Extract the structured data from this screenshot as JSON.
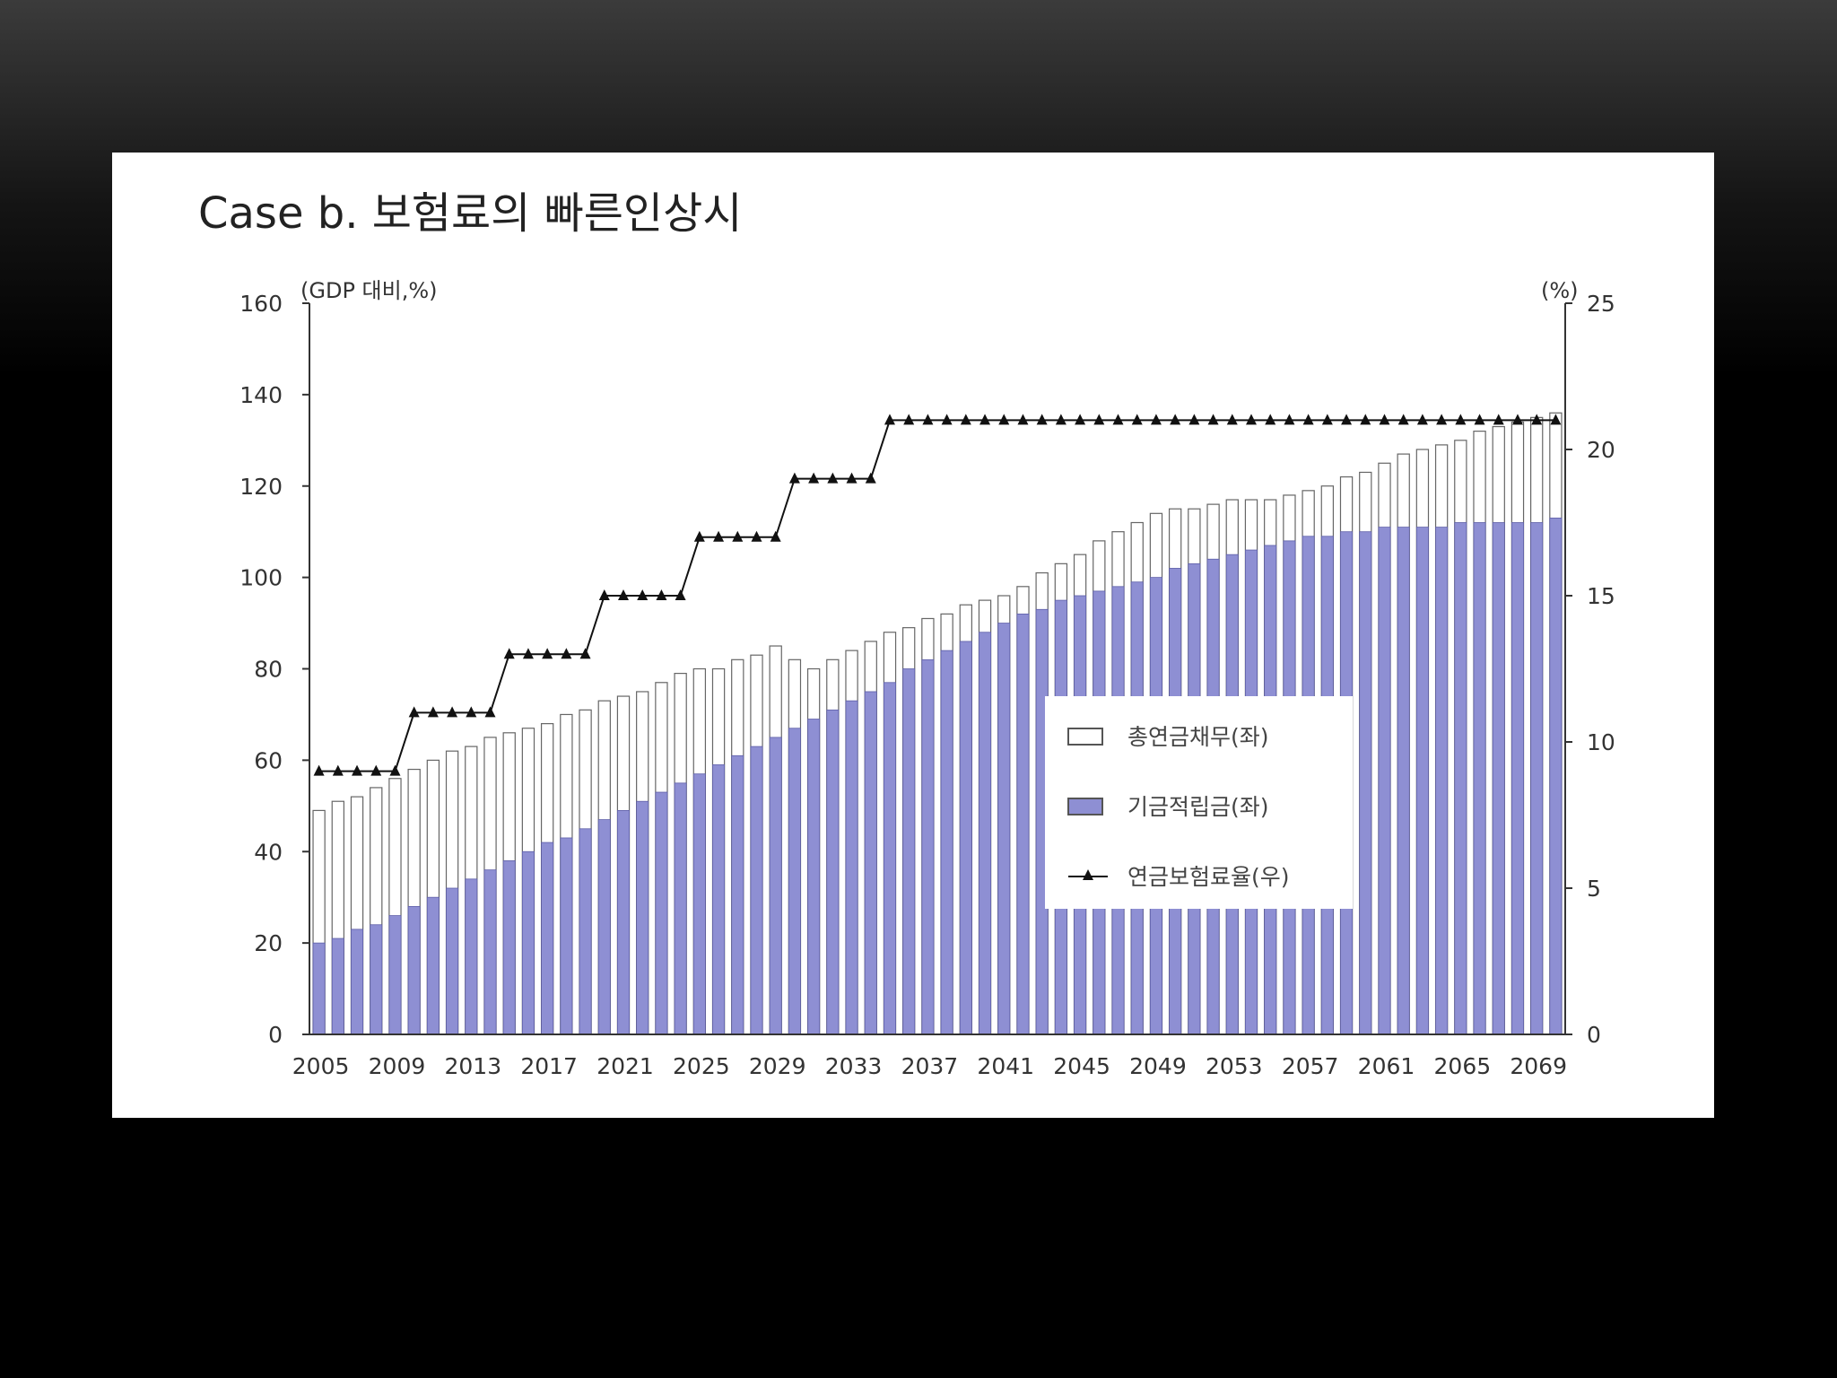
{
  "chart_data": {
    "type": "bar",
    "title": "Case b. 보험료의 빠른인상시",
    "left_axis_unit": "(GDP 대비,%)",
    "right_axis_unit": "(%)",
    "x": [
      2005,
      2006,
      2007,
      2008,
      2009,
      2010,
      2011,
      2012,
      2013,
      2014,
      2015,
      2016,
      2017,
      2018,
      2019,
      2020,
      2021,
      2022,
      2023,
      2024,
      2025,
      2026,
      2027,
      2028,
      2029,
      2030,
      2031,
      2032,
      2033,
      2034,
      2035,
      2036,
      2037,
      2038,
      2039,
      2040,
      2041,
      2042,
      2043,
      2044,
      2045,
      2046,
      2047,
      2048,
      2049,
      2050,
      2051,
      2052,
      2053,
      2054,
      2055,
      2056,
      2057,
      2058,
      2059,
      2060,
      2061,
      2062,
      2063,
      2064,
      2065,
      2066,
      2067,
      2068,
      2069,
      2070
    ],
    "x_tick_labels": [
      "2005",
      "2009",
      "2013",
      "2017",
      "2021",
      "2025",
      "2029",
      "2033",
      "2037",
      "2041",
      "2045",
      "2049",
      "2053",
      "2057",
      "2061",
      "2065",
      "2069"
    ],
    "ylim_left": [
      0,
      160
    ],
    "yticks_left": [
      0,
      20,
      40,
      60,
      80,
      100,
      120,
      140,
      160
    ],
    "ylim_right": [
      0,
      25
    ],
    "yticks_right": [
      0,
      5,
      10,
      15,
      20,
      25
    ],
    "series": [
      {
        "name": "총연금채무(좌)",
        "type": "bar",
        "axis": "left",
        "color": "#ffffff",
        "values": [
          49,
          51,
          52,
          54,
          56,
          58,
          60,
          62,
          63,
          65,
          66,
          67,
          68,
          70,
          71,
          73,
          74,
          75,
          77,
          79,
          80,
          80,
          82,
          83,
          85,
          82,
          80,
          82,
          84,
          86,
          88,
          89,
          91,
          92,
          94,
          95,
          96,
          98,
          101,
          103,
          105,
          108,
          110,
          112,
          114,
          115,
          115,
          116,
          117,
          117,
          117,
          118,
          119,
          120,
          122,
          123,
          125,
          127,
          128,
          129,
          130,
          132,
          133,
          134,
          135,
          136
        ]
      },
      {
        "name": "기금적립금(좌)",
        "type": "bar",
        "axis": "left",
        "color": "#8e8fd3",
        "values": [
          20,
          21,
          23,
          24,
          26,
          28,
          30,
          32,
          34,
          36,
          38,
          40,
          42,
          43,
          45,
          47,
          49,
          51,
          53,
          55,
          57,
          59,
          61,
          63,
          65,
          67,
          69,
          71,
          73,
          75,
          77,
          80,
          82,
          84,
          86,
          88,
          90,
          92,
          93,
          95,
          96,
          97,
          98,
          99,
          100,
          102,
          103,
          104,
          105,
          106,
          107,
          108,
          109,
          109,
          110,
          110,
          111,
          111,
          111,
          111,
          112,
          112,
          112,
          112,
          112,
          113
        ]
      },
      {
        "name": "연금보험료율(우)",
        "type": "line",
        "axis": "right",
        "color": "#111111",
        "values": [
          9,
          9,
          9,
          9,
          9,
          11,
          11,
          11,
          11,
          11,
          13,
          13,
          13,
          13,
          13,
          15,
          15,
          15,
          15,
          15,
          17,
          17,
          17,
          17,
          17,
          19,
          19,
          19,
          19,
          19,
          21,
          21,
          21,
          21,
          21,
          21,
          21,
          21,
          21,
          21,
          21,
          21,
          21,
          21,
          21,
          21,
          21,
          21,
          21,
          21,
          21,
          21,
          21,
          21,
          21,
          21,
          21,
          21,
          21,
          21,
          21,
          21,
          21,
          21,
          21,
          21
        ]
      }
    ],
    "legend_position": "lower-right-inside",
    "grid": false
  }
}
